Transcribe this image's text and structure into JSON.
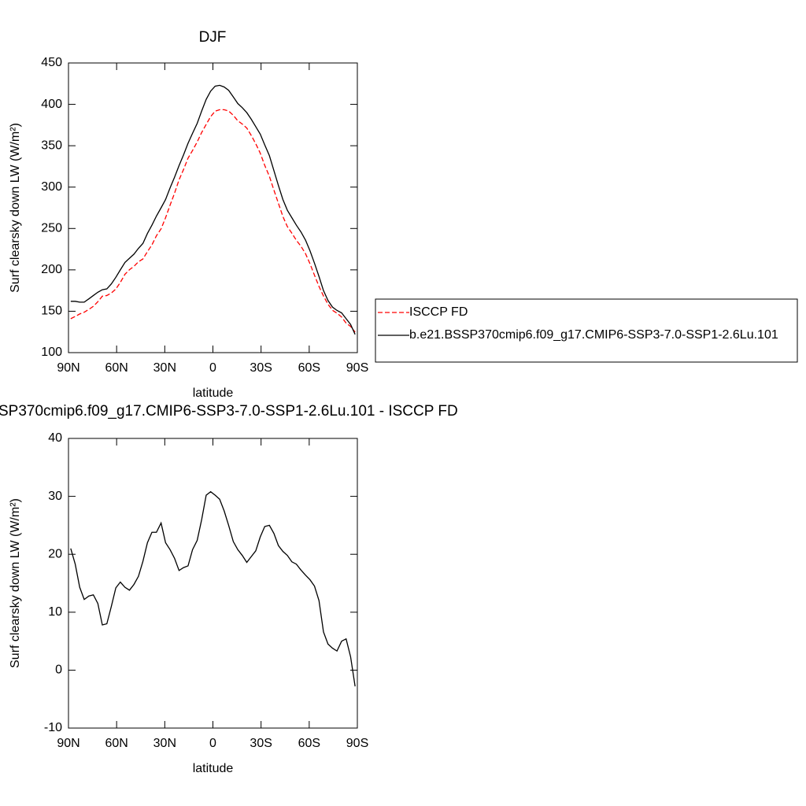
{
  "chart_data": [
    {
      "type": "line",
      "title": "DJF",
      "xlabel": "latitude",
      "ylabel": "Surf clearsky down LW (W/m²)",
      "x": [
        88.6,
        85.8,
        83.0,
        80.2,
        77.3,
        74.5,
        71.7,
        68.9,
        66.1,
        63.3,
        60.5,
        57.7,
        54.8,
        52.0,
        49.2,
        46.4,
        43.6,
        40.8,
        38.0,
        35.2,
        32.3,
        29.5,
        26.7,
        23.9,
        21.1,
        18.3,
        15.5,
        12.7,
        9.8,
        7.0,
        4.2,
        1.4,
        -1.4,
        -4.2,
        -7.0,
        -9.8,
        -12.7,
        -15.5,
        -18.3,
        -21.1,
        -23.9,
        -26.7,
        -29.5,
        -32.3,
        -35.2,
        -38.0,
        -40.8,
        -43.6,
        -46.4,
        -49.2,
        -52.0,
        -54.8,
        -57.7,
        -60.5,
        -63.3,
        -66.1,
        -68.9,
        -71.7,
        -74.5,
        -77.3,
        -80.2,
        -83.0,
        -85.8,
        -88.6
      ],
      "xlim": [
        90,
        -90
      ],
      "xticks": [
        {
          "value": 90,
          "label": "90N"
        },
        {
          "value": 60,
          "label": "60N"
        },
        {
          "value": 30,
          "label": "30N"
        },
        0,
        {
          "value": -30,
          "label": "30S"
        },
        {
          "value": -60,
          "label": "60S"
        },
        {
          "value": -90,
          "label": "90S"
        }
      ],
      "ylim": [
        100,
        450
      ],
      "yticks": [
        100,
        150,
        200,
        250,
        300,
        350,
        400,
        450
      ],
      "legend": "right",
      "series": [
        {
          "name": "ISCCP FD",
          "color": "#ff0000",
          "linestyle": "dashed",
          "values": [
            141,
            143.7,
            146.7,
            148.8,
            152.2,
            156,
            161.5,
            168.2,
            169,
            172,
            176.8,
            184.8,
            194.7,
            200.2,
            204.2,
            209.8,
            213.2,
            222,
            230.2,
            241.2,
            249.6,
            263,
            278.2,
            292.7,
            308.8,
            321.3,
            335,
            344.2,
            354.6,
            366,
            375.8,
            385.2,
            391.8,
            393.5,
            393.5,
            392,
            386.8,
            380.2,
            376.2,
            371.4,
            362.4,
            352.4,
            341,
            326.2,
            313,
            296.4,
            280.5,
            264.5,
            252.2,
            244.3,
            235.7,
            228.7,
            219.6,
            207.4,
            193.5,
            180,
            168.4,
            158.5,
            151.2,
            147.7,
            143,
            135.6,
            131.7,
            124.8
          ]
        },
        {
          "name": "b.e21.BSSP370cmip6.f09_g17.CMIP6-SSP3-7.0-SSP1-2.6Lu.101",
          "color": "#000000",
          "linestyle": "solid",
          "values": [
            162,
            162,
            161,
            161,
            165,
            169,
            173,
            176,
            177,
            183,
            191,
            200,
            209,
            214,
            219,
            226,
            232,
            244,
            254,
            265,
            275,
            285,
            299,
            312,
            326,
            339,
            353,
            365,
            377,
            392,
            406,
            416,
            422,
            423,
            421,
            417,
            409,
            401,
            396,
            390,
            382,
            373,
            364,
            351,
            338,
            320,
            302,
            285,
            272,
            263,
            254,
            246,
            236,
            223,
            208,
            192,
            175,
            163,
            155,
            151,
            148,
            141,
            134,
            122
          ]
        }
      ]
    },
    {
      "type": "line",
      "title": "SP370cmip6.f09_g17.CMIP6-SSP3-7.0-SSP1-2.6Lu.101 - ISCCP FD",
      "xlabel": "latitude",
      "ylabel": "Surf clearsky down LW (W/m²)",
      "x": [
        88.6,
        85.8,
        83.0,
        80.2,
        77.3,
        74.5,
        71.7,
        68.9,
        66.1,
        63.3,
        60.5,
        57.7,
        54.8,
        52.0,
        49.2,
        46.4,
        43.6,
        40.8,
        38.0,
        35.2,
        32.3,
        29.5,
        26.7,
        23.9,
        21.1,
        18.3,
        15.5,
        12.7,
        9.8,
        7.0,
        4.2,
        1.4,
        -1.4,
        -4.2,
        -7.0,
        -9.8,
        -12.7,
        -15.5,
        -18.3,
        -21.1,
        -23.9,
        -26.7,
        -29.5,
        -32.3,
        -35.2,
        -38.0,
        -40.8,
        -43.6,
        -46.4,
        -49.2,
        -52.0,
        -54.8,
        -57.7,
        -60.5,
        -63.3,
        -66.1,
        -68.9,
        -71.7,
        -74.5,
        -77.3,
        -80.2,
        -83.0,
        -85.8,
        -88.6
      ],
      "xlim": [
        90,
        -90
      ],
      "xticks": [
        {
          "value": 90,
          "label": "90N"
        },
        {
          "value": 60,
          "label": "60N"
        },
        {
          "value": 30,
          "label": "30N"
        },
        0,
        {
          "value": -30,
          "label": "30S"
        },
        {
          "value": -60,
          "label": "60S"
        },
        {
          "value": -90,
          "label": "90S"
        }
      ],
      "ylim": [
        -10,
        40
      ],
      "yticks": [
        -10,
        0,
        10,
        20,
        30,
        40
      ],
      "color": "#000000",
      "values": [
        21,
        18.3,
        14.3,
        12.2,
        12.8,
        13,
        11.5,
        7.8,
        8,
        11,
        14.2,
        15.2,
        14.3,
        13.8,
        14.8,
        16.2,
        18.8,
        22,
        23.8,
        23.8,
        25.4,
        22,
        20.8,
        19.3,
        17.2,
        17.7,
        18,
        20.8,
        22.4,
        26,
        30.2,
        30.8,
        30.2,
        29.5,
        27.5,
        25,
        22.2,
        20.8,
        19.8,
        18.6,
        19.6,
        20.6,
        23,
        24.8,
        25,
        23.6,
        21.5,
        20.5,
        19.8,
        18.7,
        18.3,
        17.3,
        16.4,
        15.6,
        14.5,
        12,
        6.6,
        4.5,
        3.8,
        3.3,
        5,
        5.4,
        2.3,
        -2.8
      ]
    }
  ]
}
